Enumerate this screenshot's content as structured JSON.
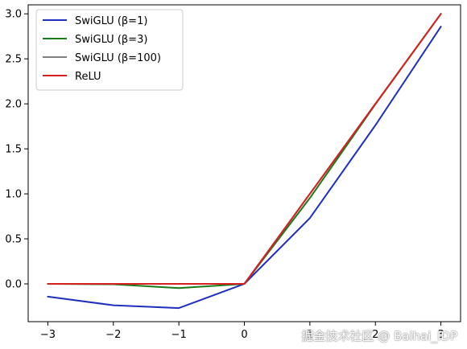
{
  "chart_data": {
    "type": "line",
    "title": "",
    "xlabel": "",
    "ylabel": "",
    "x": [
      -3,
      -2,
      -1,
      0,
      1,
      2,
      3
    ],
    "xlim": [
      -3.3,
      3.3
    ],
    "ylim": [
      -0.42,
      3.1
    ],
    "xticks": [
      -3,
      -2,
      -1,
      0,
      1,
      2,
      3
    ],
    "xtick_labels": [
      "−3",
      "−2",
      "−1",
      "0",
      "1",
      "2",
      "3"
    ],
    "yticks": [
      0.0,
      0.5,
      1.0,
      1.5,
      2.0,
      2.5,
      3.0
    ],
    "ytick_labels": [
      "0.0",
      "0.5",
      "1.0",
      "1.5",
      "2.0",
      "2.5",
      "3.0"
    ],
    "grid": false,
    "legend_position": "top-left",
    "series": [
      {
        "name": "SwiGLU (β=1)",
        "color": "#1f2fbf",
        "values": [
          -0.142,
          -0.238,
          -0.269,
          0.0,
          0.731,
          1.762,
          2.858
        ]
      },
      {
        "name": "SwiGLU (β=3)",
        "color": "#1a7a1a",
        "values": [
          -0.0004,
          -0.005,
          -0.047,
          0.0,
          0.953,
          1.995,
          2.9996
        ]
      },
      {
        "name": "SwiGLU (β=100)",
        "color": "#808080",
        "values": [
          0.0,
          0.0,
          0.0,
          0.0,
          1.0,
          2.0,
          3.0
        ]
      },
      {
        "name": "ReLU",
        "color": "#d62020",
        "values": [
          0.0,
          0.0,
          0.0,
          0.0,
          1.0,
          2.0,
          3.0
        ]
      }
    ]
  },
  "watermark": "掘金技术社区 @ Baihai_IDP"
}
